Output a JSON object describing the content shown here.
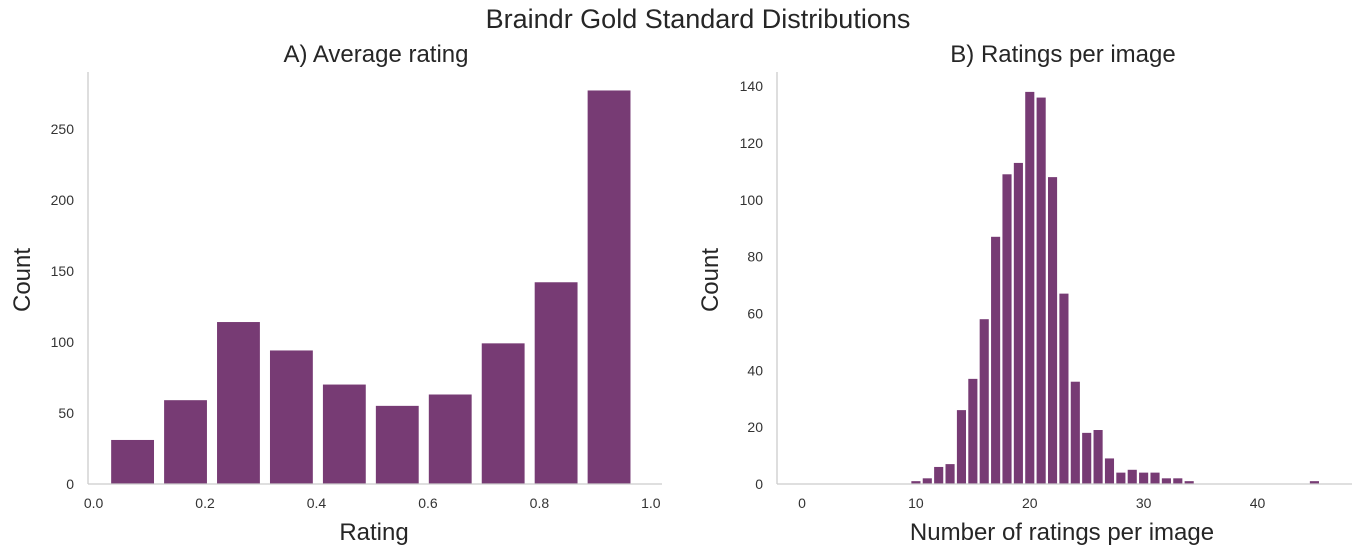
{
  "figure": {
    "title": "Braindr Gold Standard Distributions",
    "bar_color": "#773b74",
    "spine_color": "#cccccc"
  },
  "chart_data": [
    {
      "type": "bar",
      "title": "A) Average rating",
      "xlabel": "Rating",
      "ylabel": "Count",
      "xlim": [
        -0.01,
        1.02
      ],
      "ylim": [
        0,
        290
      ],
      "xticks": [
        0.0,
        0.2,
        0.4,
        0.6,
        0.8,
        1.0
      ],
      "xtick_labels": [
        "0.0",
        "0.2",
        "0.4",
        "0.6",
        "0.8",
        "1.0"
      ],
      "yticks": [
        0,
        50,
        100,
        150,
        200,
        250
      ],
      "ytick_labels": [
        "0",
        "50",
        "100",
        "150",
        "200",
        "250"
      ],
      "grid": false,
      "bin_width": 0.0769,
      "bin_centers": [
        0.07,
        0.165,
        0.26,
        0.355,
        0.45,
        0.545,
        0.64,
        0.735,
        0.83,
        0.925
      ],
      "values": [
        31,
        59,
        114,
        94,
        70,
        55,
        63,
        99,
        142,
        277
      ]
    },
    {
      "type": "bar",
      "title": "B) Ratings per image",
      "xlabel": "Number of ratings per image",
      "ylabel": "Count",
      "xlim": [
        -2.2,
        48.3
      ],
      "ylim": [
        0,
        145
      ],
      "xticks": [
        0,
        10,
        20,
        30,
        40
      ],
      "xtick_labels": [
        "0",
        "10",
        "20",
        "30",
        "40"
      ],
      "yticks": [
        0,
        20,
        40,
        60,
        80,
        100,
        120,
        140
      ],
      "ytick_labels": [
        "0",
        "20",
        "40",
        "60",
        "80",
        "100",
        "120",
        "140"
      ],
      "grid": false,
      "bin_width": 0.8,
      "x": [
        10,
        11,
        12,
        13,
        14,
        15,
        16,
        17,
        18,
        19,
        20,
        21,
        22,
        23,
        24,
        25,
        26,
        27,
        28,
        29,
        30,
        31,
        32,
        33,
        34,
        45
      ],
      "values": [
        1,
        2,
        6,
        7,
        26,
        37,
        58,
        87,
        109,
        113,
        138,
        136,
        108,
        67,
        36,
        18,
        19,
        9,
        4,
        5,
        4,
        4,
        2,
        2,
        1,
        1
      ]
    }
  ]
}
